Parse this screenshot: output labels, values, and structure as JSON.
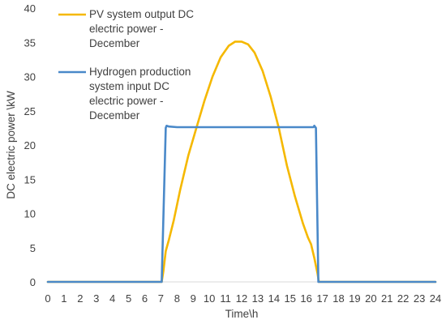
{
  "chart_data": {
    "type": "line",
    "title": "",
    "xlabel": "Time\\h",
    "ylabel": "DC electric power \\kW",
    "xlim": [
      0,
      24
    ],
    "ylim": [
      0,
      40
    ],
    "x_ticks": [
      0,
      1,
      2,
      3,
      4,
      5,
      6,
      7,
      8,
      9,
      10,
      11,
      12,
      13,
      14,
      15,
      16,
      17,
      18,
      19,
      20,
      21,
      22,
      23,
      24
    ],
    "y_ticks": [
      0,
      5,
      10,
      15,
      20,
      25,
      30,
      35,
      40
    ],
    "grid": false,
    "legend_position": "top-left",
    "series": [
      {
        "name_lines": [
          "PV system output DC",
          "electric power -",
          "December"
        ],
        "color": "#F5B800",
        "x": [
          0,
          7.05,
          7.15,
          7.3,
          7.5,
          7.8,
          8.2,
          8.7,
          9.2,
          9.7,
          10.2,
          10.7,
          11.2,
          11.6,
          12.0,
          12.4,
          12.8,
          13.3,
          13.8,
          14.3,
          14.8,
          15.3,
          15.8,
          16.1,
          16.3,
          16.5,
          16.7,
          16.78,
          24
        ],
        "y": [
          0,
          0,
          1.5,
          4.5,
          6.2,
          9.0,
          13.5,
          18.5,
          22.5,
          26.5,
          30.0,
          32.8,
          34.5,
          35.1,
          35.1,
          34.7,
          33.5,
          30.8,
          27.0,
          22.5,
          17.0,
          12.5,
          8.5,
          6.5,
          5.5,
          3.5,
          1.2,
          0,
          0
        ]
      },
      {
        "name_lines": [
          "Hydrogen production",
          "system input DC",
          "electric power -",
          "December"
        ],
        "color": "#4A89C9",
        "x": [
          0,
          7.05,
          7.3,
          7.35,
          7.5,
          8.0,
          16.2,
          16.45,
          16.5,
          16.6,
          16.75,
          24
        ],
        "y": [
          0,
          0,
          22.5,
          22.8,
          22.7,
          22.6,
          22.6,
          22.6,
          22.8,
          22.5,
          0,
          0
        ]
      }
    ]
  }
}
